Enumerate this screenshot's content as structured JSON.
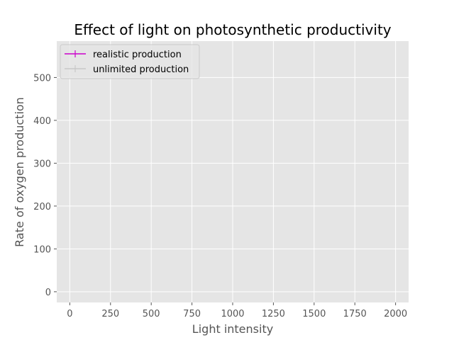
{
  "chart_data": {
    "type": "line",
    "title": "Effect of light on photosynthetic productivity",
    "xlabel": "Light intensity",
    "ylabel": "Rate of oxygen production",
    "xlim": [
      -80,
      2080
    ],
    "ylim": [
      -25,
      585
    ],
    "x_ticks": [
      "0",
      "250",
      "500",
      "750",
      "1000",
      "1250",
      "1500",
      "1750",
      "2000"
    ],
    "x_tick_values": [
      0,
      250,
      500,
      750,
      1000,
      1250,
      1500,
      1750,
      2000
    ],
    "y_ticks": [
      "0",
      "100",
      "200",
      "300",
      "400",
      "500"
    ],
    "y_tick_values": [
      0,
      100,
      200,
      300,
      400,
      500
    ],
    "grid": true,
    "legend_position": "top-left",
    "series": [
      {
        "name": "realistic production",
        "color": "#cc00cc",
        "marker": "plus",
        "x": [],
        "y": []
      },
      {
        "name": "unlimited production",
        "color": "#c8c8c8",
        "marker": "plus",
        "x": [],
        "y": []
      }
    ],
    "style": {
      "plot_background": "#e5e5e5",
      "grid_color": "#ffffff"
    }
  }
}
